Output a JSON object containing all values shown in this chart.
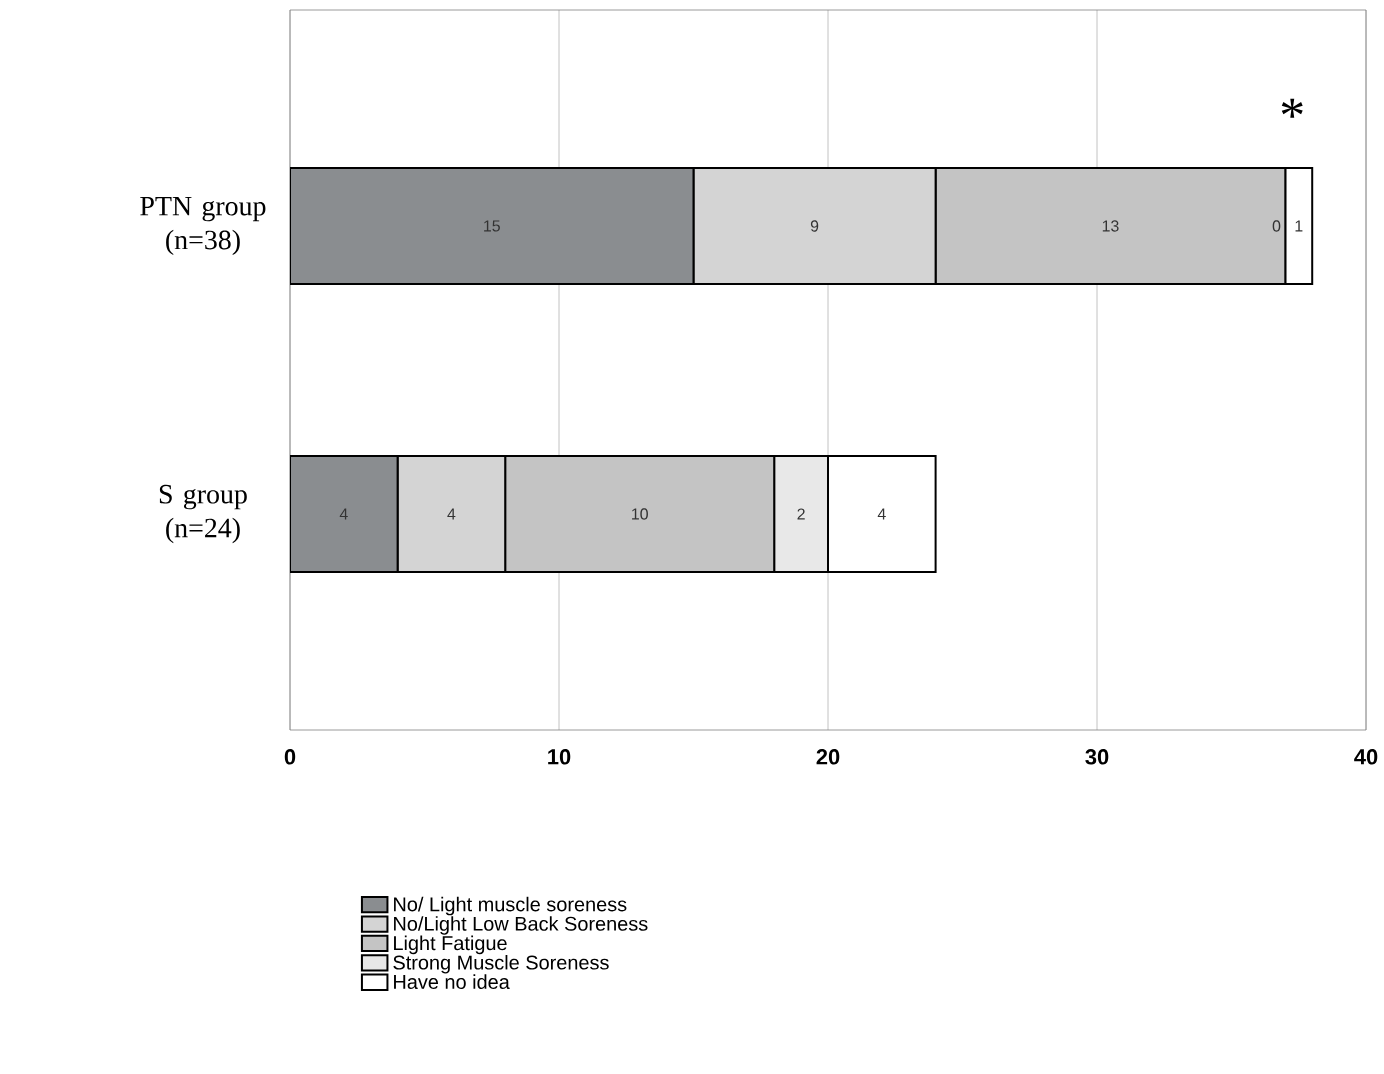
{
  "chart_data": {
    "type": "bar",
    "orientation": "horizontal",
    "stacked": true,
    "categories": [
      "PTN group (n=38)",
      "S group (n=24)"
    ],
    "series": [
      {
        "name": "No/ Light muscle soreness",
        "color": "#8a8d90",
        "values": [
          15,
          4
        ]
      },
      {
        "name": "No/Light Low Back Soreness",
        "color": "#d4d4d4",
        "values": [
          9,
          4
        ]
      },
      {
        "name": "Light Fatigue",
        "color": "#c4c4c4",
        "values": [
          13,
          10
        ]
      },
      {
        "name": "Strong Muscle Soreness",
        "color": "#e8e8e8",
        "values": [
          0,
          2
        ]
      },
      {
        "name": "Have no idea",
        "color": "#ffffff",
        "values": [
          1,
          4
        ]
      }
    ],
    "xlim": [
      0,
      40
    ],
    "xticks": [
      0,
      10,
      20,
      30,
      40
    ],
    "grid": "x",
    "legend": "bottom",
    "data_labels": true,
    "annotations": [
      "*"
    ]
  }
}
